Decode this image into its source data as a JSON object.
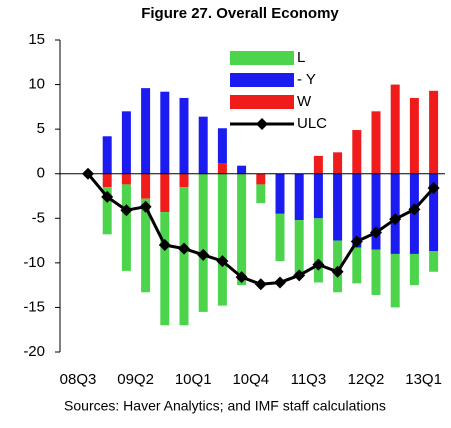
{
  "chart_data": {
    "type": "stacked-bar-line",
    "title": "Figure 27. Overall Economy",
    "source": "Sources: Haver Analytics; and IMF staff calculations",
    "categories": [
      "08Q3",
      null,
      null,
      "09Q2",
      null,
      null,
      "10Q1",
      null,
      null,
      "10Q4",
      null,
      null,
      "11Q3",
      null,
      null,
      "12Q2",
      null,
      null,
      "13Q1"
    ],
    "series": [
      {
        "name": "L",
        "color": "#4cd44c",
        "kind": "bar",
        "values": [
          0,
          -5.3,
          -9.7,
          -10.5,
          -12.7,
          -15.5,
          -15.5,
          -14.8,
          -12.5,
          -2.1,
          -5.3,
          -6.4,
          -7.2,
          -5.8,
          -4.0,
          -5.1,
          -6.0,
          -3.5,
          -2.3
        ]
      },
      {
        "name": "- Y",
        "color": "#1c1cf0",
        "kind": "bar",
        "values": [
          0,
          4.2,
          7.0,
          9.6,
          9.2,
          8.5,
          6.4,
          3.9,
          0.9,
          0,
          -4.5,
          -5.2,
          -5.0,
          -7.5,
          -8.3,
          -8.5,
          -9.0,
          -9.0,
          -8.7
        ]
      },
      {
        "name": "W",
        "color": "#f01c1c",
        "kind": "bar",
        "values": [
          0,
          -1.5,
          -1.2,
          -2.8,
          -4.3,
          -1.5,
          0,
          1.2,
          0,
          -1.2,
          0,
          0,
          2.0,
          2.4,
          4.9,
          7.0,
          10.0,
          8.5,
          9.3
        ]
      },
      {
        "name": "ULC",
        "color": "#000000",
        "kind": "line",
        "values": [
          0,
          -2.6,
          -4.1,
          -3.7,
          -8.0,
          -8.4,
          -9.1,
          -9.8,
          -11.6,
          -12.4,
          -12.2,
          -11.4,
          -10.2,
          -11.0,
          -7.6,
          -6.6,
          -5.1,
          -4.0,
          -1.6
        ]
      }
    ],
    "ylim": [
      -20,
      15
    ],
    "yticks": [
      -20,
      -15,
      -10,
      -5,
      0,
      5,
      10,
      15
    ]
  }
}
